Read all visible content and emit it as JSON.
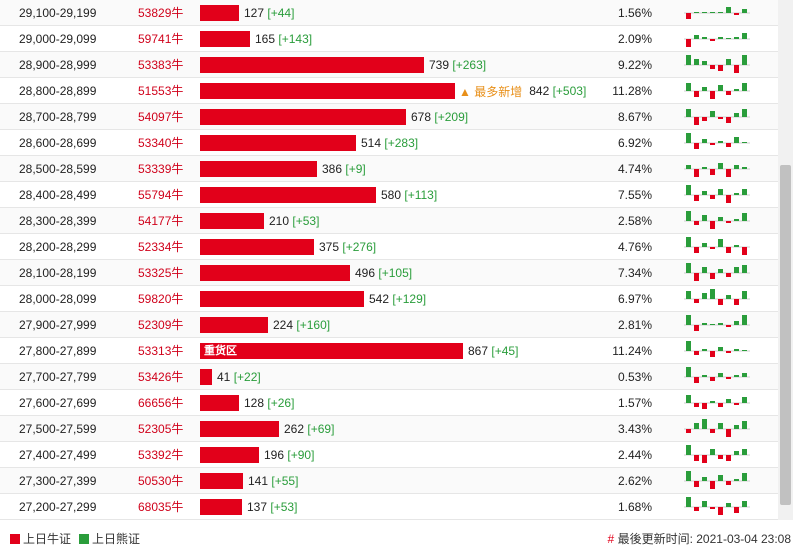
{
  "colors": {
    "bull": "#e2001a",
    "bear": "#2a9d3b",
    "new_tag": "#e8901a"
  },
  "rows": [
    {
      "range": "29,100-29,199",
      "code": "53829牛",
      "value": 127,
      "change": "[+44]",
      "pct": "1.56%",
      "spark": [
        -3,
        0,
        0,
        0,
        0,
        3,
        -1,
        2
      ]
    },
    {
      "range": "29,000-29,099",
      "code": "59741牛",
      "value": 165,
      "change": "[+143]",
      "pct": "2.09%",
      "spark": [
        -4,
        2,
        1,
        -1,
        1,
        0,
        1,
        3
      ]
    },
    {
      "range": "28,900-28,999",
      "code": "53383牛",
      "value": 739,
      "change": "[+263]",
      "pct": "9.22%",
      "spark": [
        5,
        3,
        2,
        -2,
        -3,
        3,
        -4,
        5
      ]
    },
    {
      "range": "28,800-28,899",
      "code": "51553牛",
      "value": 842,
      "change": "[+503]",
      "pct": "11.28%",
      "tag": "▲ 最多新增",
      "spark": [
        4,
        -3,
        2,
        -4,
        3,
        -2,
        1,
        4
      ]
    },
    {
      "range": "28,700-28,799",
      "code": "54097牛",
      "value": 678,
      "change": "[+209]",
      "pct": "8.67%",
      "spark": [
        4,
        -4,
        -2,
        3,
        -1,
        -3,
        2,
        4
      ]
    },
    {
      "range": "28,600-28,699",
      "code": "53340牛",
      "value": 514,
      "change": "[+283]",
      "pct": "6.92%",
      "spark": [
        5,
        -3,
        2,
        -1,
        1,
        -2,
        3,
        0
      ]
    },
    {
      "range": "28,500-28,599",
      "code": "53339牛",
      "value": 386,
      "change": "[+9]",
      "pct": "4.74%",
      "spark": [
        2,
        -4,
        1,
        -3,
        3,
        -4,
        2,
        1
      ]
    },
    {
      "range": "28,400-28,499",
      "code": "55794牛",
      "value": 580,
      "change": "[+113]",
      "pct": "7.55%",
      "spark": [
        5,
        -3,
        2,
        -2,
        3,
        -4,
        1,
        3
      ]
    },
    {
      "range": "28,300-28,399",
      "code": "54177牛",
      "value": 210,
      "change": "[+53]",
      "pct": "2.58%",
      "spark": [
        5,
        -2,
        3,
        -4,
        2,
        -1,
        1,
        4
      ]
    },
    {
      "range": "28,200-28,299",
      "code": "52334牛",
      "value": 375,
      "change": "[+276]",
      "pct": "4.76%",
      "spark": [
        5,
        -3,
        2,
        -1,
        4,
        -3,
        1,
        -4
      ]
    },
    {
      "range": "28,100-28,199",
      "code": "53325牛",
      "value": 496,
      "change": "[+105]",
      "pct": "7.34%",
      "spark": [
        5,
        -4,
        3,
        -3,
        2,
        -2,
        3,
        4
      ]
    },
    {
      "range": "28,000-28,099",
      "code": "59820牛",
      "value": 542,
      "change": "[+129]",
      "pct": "6.97%",
      "spark": [
        4,
        -2,
        3,
        5,
        -3,
        2,
        -3,
        4
      ]
    },
    {
      "range": "27,900-27,999",
      "code": "52309牛",
      "value": 224,
      "change": "[+160]",
      "pct": "2.81%",
      "spark": [
        5,
        -3,
        1,
        0,
        1,
        -1,
        2,
        5
      ]
    },
    {
      "range": "27,800-27,899",
      "code": "53313牛",
      "value": 867,
      "change": "[+45]",
      "pct": "11.24%",
      "heavy": "重货区",
      "spark": [
        5,
        -2,
        1,
        -3,
        2,
        -1,
        1,
        0
      ]
    },
    {
      "range": "27,700-27,799",
      "code": "53426牛",
      "value": 41,
      "change": "[+22]",
      "pct": "0.53%",
      "spark": [
        5,
        -3,
        1,
        -2,
        2,
        -1,
        1,
        2
      ]
    },
    {
      "range": "27,600-27,699",
      "code": "66656牛",
      "value": 128,
      "change": "[+26]",
      "pct": "1.57%",
      "spark": [
        4,
        -2,
        -3,
        1,
        -2,
        2,
        -1,
        3
      ]
    },
    {
      "range": "27,500-27,599",
      "code": "52305牛",
      "value": 262,
      "change": "[+69]",
      "pct": "3.43%",
      "spark": [
        -2,
        3,
        5,
        -2,
        3,
        -4,
        2,
        4
      ]
    },
    {
      "range": "27,400-27,499",
      "code": "53392牛",
      "value": 196,
      "change": "[+90]",
      "pct": "2.44%",
      "spark": [
        5,
        -3,
        -4,
        3,
        -2,
        -3,
        2,
        3
      ]
    },
    {
      "range": "27,300-27,399",
      "code": "50530牛",
      "value": 141,
      "change": "[+55]",
      "pct": "2.62%",
      "spark": [
        5,
        -3,
        2,
        -4,
        3,
        -2,
        1,
        4
      ]
    },
    {
      "range": "27,200-27,299",
      "code": "68035牛",
      "value": 137,
      "change": "[+53]",
      "pct": "1.68%",
      "spark": [
        5,
        -2,
        3,
        -1,
        -4,
        2,
        -3,
        3
      ]
    }
  ],
  "footer": {
    "legend_bull": "上日牛证",
    "legend_bear": "上日熊证",
    "update_hash": "#",
    "update_label": "最後更新时间:",
    "update_time": "2021-03-04 23:08"
  }
}
